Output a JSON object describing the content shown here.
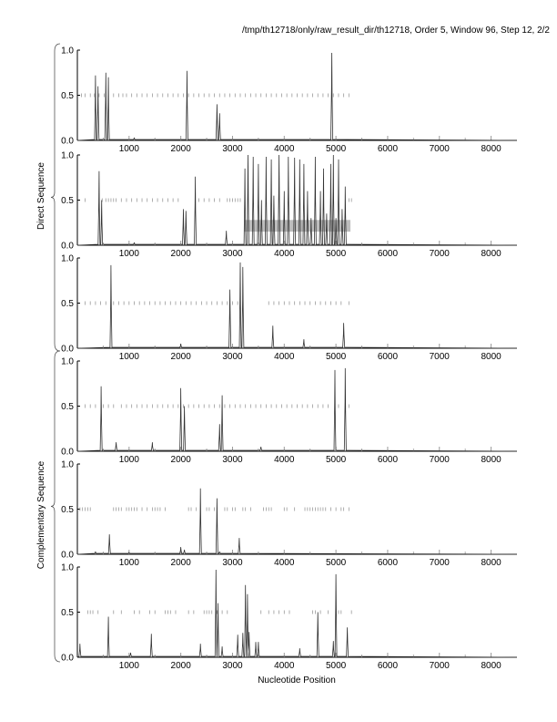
{
  "title": "/tmp/th12718/only/raw_result_dir/th12718, Order 5, Window 96, Step 12, 2/2",
  "chart_data": {
    "type": "line",
    "xlabel": "Nucleotide Position",
    "xlim": [
      0,
      8500
    ],
    "ylim": [
      0,
      1
    ],
    "xticks": [
      1000,
      2000,
      3000,
      4000,
      5000,
      6000,
      7000,
      8000
    ],
    "yticks": [
      "0.0",
      "0.5",
      "1.0"
    ],
    "groups": [
      {
        "label": "Direct Sequence",
        "panels": [
          0,
          1,
          2
        ]
      },
      {
        "label": "Complementary Sequence",
        "panels": [
          3,
          4,
          5
        ]
      }
    ],
    "panels": [
      {
        "peaks": [
          [
            350,
            0.72
          ],
          [
            400,
            0.6
          ],
          [
            550,
            0.75
          ],
          [
            600,
            0.7
          ],
          [
            1100,
            0.03
          ],
          [
            2120,
            0.77
          ],
          [
            2700,
            0.4
          ],
          [
            2750,
            0.3
          ],
          [
            4920,
            0.97
          ]
        ],
        "stop_codons": [
          80,
          150,
          250,
          330,
          420,
          520,
          600,
          700,
          800,
          880,
          950,
          1050,
          1150,
          1250,
          1350,
          1450,
          1550,
          1650,
          1750,
          1850,
          1950,
          2050,
          2150,
          2250,
          2350,
          2450,
          2550,
          2650,
          2750,
          2850,
          2950,
          3050,
          3150,
          3250,
          3350,
          3450,
          3550,
          3650,
          3750,
          3850,
          3950,
          4050,
          4150,
          4250,
          4350,
          4450,
          4550,
          4650,
          4750,
          4850,
          4950,
          5050,
          5150,
          5250
        ]
      },
      {
        "peaks": [
          [
            420,
            0.82
          ],
          [
            470,
            0.5
          ],
          [
            1100,
            0.03
          ],
          [
            2050,
            0.4
          ],
          [
            2100,
            0.38
          ],
          [
            2280,
            0.76
          ],
          [
            2880,
            0.16
          ],
          [
            3240,
            0.85
          ],
          [
            3300,
            1.0
          ],
          [
            3400,
            0.98
          ],
          [
            3500,
            0.9
          ],
          [
            3560,
            0.5
          ],
          [
            3650,
            0.98
          ],
          [
            3750,
            0.95
          ],
          [
            3800,
            0.55
          ],
          [
            3900,
            1.0
          ],
          [
            4000,
            0.6
          ],
          [
            4080,
            0.98
          ],
          [
            4200,
            0.97
          ],
          [
            4300,
            0.95
          ],
          [
            4380,
            0.9
          ],
          [
            4450,
            0.6
          ],
          [
            4520,
            0.3
          ],
          [
            4600,
            0.98
          ],
          [
            4700,
            0.6
          ],
          [
            4760,
            0.85
          ],
          [
            4820,
            0.35
          ],
          [
            4900,
            0.9
          ],
          [
            4950,
            1.0
          ],
          [
            5000,
            0.3
          ],
          [
            5050,
            0.95
          ],
          [
            5120,
            0.4
          ],
          [
            5180,
            0.65
          ]
        ],
        "shaded_region": {
          "x": [
            3230,
            5280
          ],
          "y": [
            0.15,
            0.28
          ]
        },
        "stop_codons": [
          150,
          420,
          480,
          550,
          600,
          650,
          700,
          750,
          850,
          950,
          1050,
          1150,
          1250,
          1350,
          1450,
          1550,
          1650,
          1750,
          1850,
          1950,
          2350,
          2450,
          2550,
          2650,
          2750,
          2900,
          2950,
          3000,
          3050,
          3100,
          3150,
          5250,
          5300
        ]
      },
      {
        "peaks": [
          [
            650,
            0.92
          ],
          [
            2000,
            0.05
          ],
          [
            2950,
            0.65
          ],
          [
            3150,
            0.95
          ],
          [
            3200,
            0.9
          ],
          [
            3780,
            0.25
          ],
          [
            4380,
            0.1
          ],
          [
            5150,
            0.28
          ]
        ],
        "stop_codons": [
          150,
          250,
          350,
          450,
          550,
          700,
          800,
          900,
          1000,
          1100,
          1200,
          1300,
          1400,
          1500,
          1600,
          1700,
          1800,
          1900,
          2000,
          2100,
          2200,
          2300,
          2400,
          2500,
          2600,
          2700,
          2800,
          2900,
          3000,
          3100,
          3700,
          3800,
          3900,
          4000,
          4100,
          4200,
          4300,
          4400,
          4500,
          4600,
          4700,
          4800,
          4900,
          5000,
          5100,
          5250
        ]
      },
      {
        "peaks": [
          [
            460,
            0.72
          ],
          [
            750,
            0.1
          ],
          [
            1450,
            0.1
          ],
          [
            2000,
            0.7
          ],
          [
            2070,
            0.5
          ],
          [
            2750,
            0.3
          ],
          [
            2800,
            0.62
          ],
          [
            3550,
            0.05
          ],
          [
            4980,
            0.9
          ],
          [
            5180,
            0.92
          ]
        ],
        "stop_codons": [
          150,
          250,
          350,
          500,
          600,
          700,
          850,
          950,
          1050,
          1150,
          1250,
          1350,
          1450,
          1550,
          1650,
          1750,
          1850,
          1950,
          2050,
          2150,
          2250,
          2350,
          2450,
          2550,
          2650,
          2750,
          2850,
          2950,
          3050,
          3150,
          3250,
          3350,
          3450,
          3550,
          3650,
          3750,
          3850,
          3950,
          4050,
          4150,
          4250,
          4350,
          4450,
          4550,
          4650,
          4750,
          4850,
          5050,
          5250
        ]
      },
      {
        "peaks": [
          [
            350,
            0.03
          ],
          [
            620,
            0.22
          ],
          [
            1000,
            0.02
          ],
          [
            2000,
            0.08
          ],
          [
            2070,
            0.05
          ],
          [
            2380,
            0.73
          ],
          [
            2700,
            0.62
          ],
          [
            2750,
            0.03
          ],
          [
            3130,
            0.18
          ]
        ],
        "stop_codons": [
          50,
          100,
          150,
          200,
          250,
          700,
          750,
          800,
          850,
          950,
          1000,
          1050,
          1100,
          1150,
          1250,
          1350,
          1450,
          1500,
          1550,
          1600,
          1700,
          2150,
          2200,
          2300,
          2500,
          2550,
          2650,
          2700,
          2850,
          2900,
          3000,
          3050,
          3200,
          3250,
          3350,
          3600,
          3650,
          3700,
          3750,
          4000,
          4050,
          4200,
          4400,
          4450,
          4500,
          4550,
          4600,
          4650,
          4700,
          4750,
          4800,
          4900,
          5000,
          5100,
          5150,
          5250
        ]
      },
      {
        "peaks": [
          [
            50,
            0.15
          ],
          [
            600,
            0.45
          ],
          [
            1030,
            0.05
          ],
          [
            1430,
            0.26
          ],
          [
            2380,
            0.15
          ],
          [
            2680,
            0.97
          ],
          [
            2720,
            0.6
          ],
          [
            2800,
            0.12
          ],
          [
            3100,
            0.25
          ],
          [
            3200,
            0.27
          ],
          [
            3250,
            0.8
          ],
          [
            3290,
            0.7
          ],
          [
            3320,
            0.28
          ],
          [
            3450,
            0.17
          ],
          [
            3500,
            0.17
          ],
          [
            4300,
            0.1
          ],
          [
            4650,
            0.5
          ],
          [
            4950,
            0.18
          ],
          [
            5000,
            0.92
          ],
          [
            5220,
            0.33
          ]
        ],
        "stop_codons": [
          200,
          250,
          300,
          400,
          700,
          850,
          1100,
          1200,
          1400,
          1500,
          1700,
          1750,
          1800,
          1900,
          2150,
          2250,
          2450,
          2500,
          2550,
          2600,
          2700,
          2800,
          2900,
          3550,
          3700,
          3800,
          3900,
          4000,
          4100,
          4550,
          4600,
          4700,
          4850,
          5050,
          5100,
          5300
        ]
      }
    ]
  }
}
